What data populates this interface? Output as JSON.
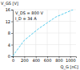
{
  "chart_data": {
    "type": "line",
    "xlabel": "Q_G [nC]",
    "ylabel": "V_GS [V]",
    "annotations": [
      "V_DS = 800 V",
      "I_D = 34 A"
    ],
    "x": [
      0,
      50,
      200,
      450,
      750,
      1050
    ],
    "values": [
      0,
      1.5,
      5.5,
      9.5,
      13.5,
      16
    ],
    "color": "#55ccee",
    "line_style": "dashed",
    "xlim": [
      0,
      1100
    ],
    "ylim": [
      0,
      16
    ],
    "xticks": [
      0,
      200,
      400,
      600,
      800,
      1000
    ],
    "yticks": [
      0,
      4,
      8,
      12,
      16
    ],
    "grid": true
  }
}
